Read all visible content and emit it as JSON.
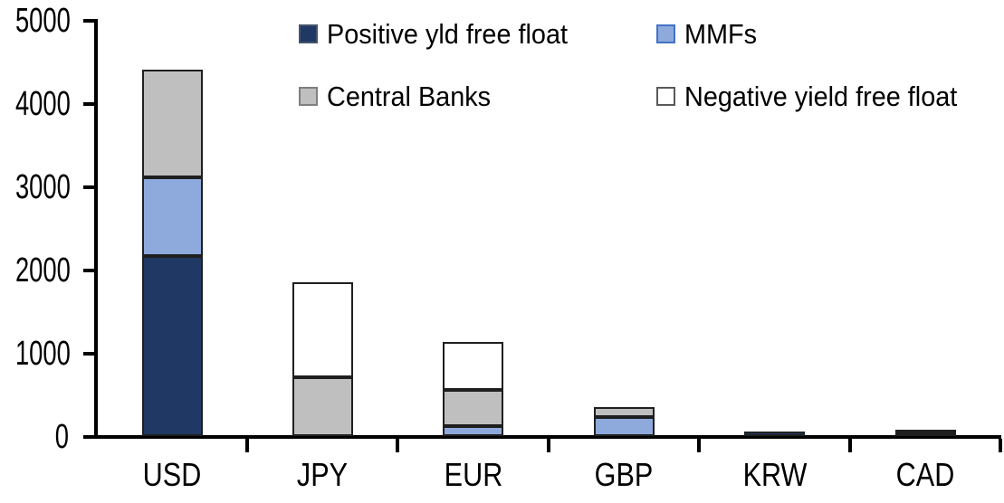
{
  "chart_data": {
    "type": "bar",
    "stacked": true,
    "categories": [
      "USD",
      "JPY",
      "EUR",
      "GBP",
      "KRW",
      "CAD"
    ],
    "series": [
      {
        "name": "Positive yld free float",
        "color": "#1F3864",
        "swatch_border": "#44546A",
        "values": [
          2160,
          0,
          0,
          0,
          55,
          40
        ]
      },
      {
        "name": "MMFs",
        "color": "#8EA9DB",
        "swatch_border": "#4472C4",
        "values": [
          950,
          0,
          120,
          230,
          0,
          0
        ]
      },
      {
        "name": "Central Banks",
        "color": "#BFBFBF",
        "swatch_border": "#7F7F7F",
        "values": [
          1290,
          710,
          435,
          115,
          0,
          35
        ]
      },
      {
        "name": "Negative yield free float",
        "color": "#FFFFFF",
        "swatch_border": "#595959",
        "values": [
          0,
          1140,
          575,
          0,
          0,
          0
        ]
      }
    ],
    "totals": [
      4400,
      1850,
      1130,
      345,
      55,
      75
    ],
    "ylim": [
      0,
      5000
    ],
    "yticks": [
      0,
      1000,
      2000,
      3000,
      4000,
      5000
    ],
    "grid": false,
    "legend_position": "top",
    "legend_layout": "2x2",
    "axis_color": "#000000",
    "segment_border_color": "#1f1f1f"
  }
}
